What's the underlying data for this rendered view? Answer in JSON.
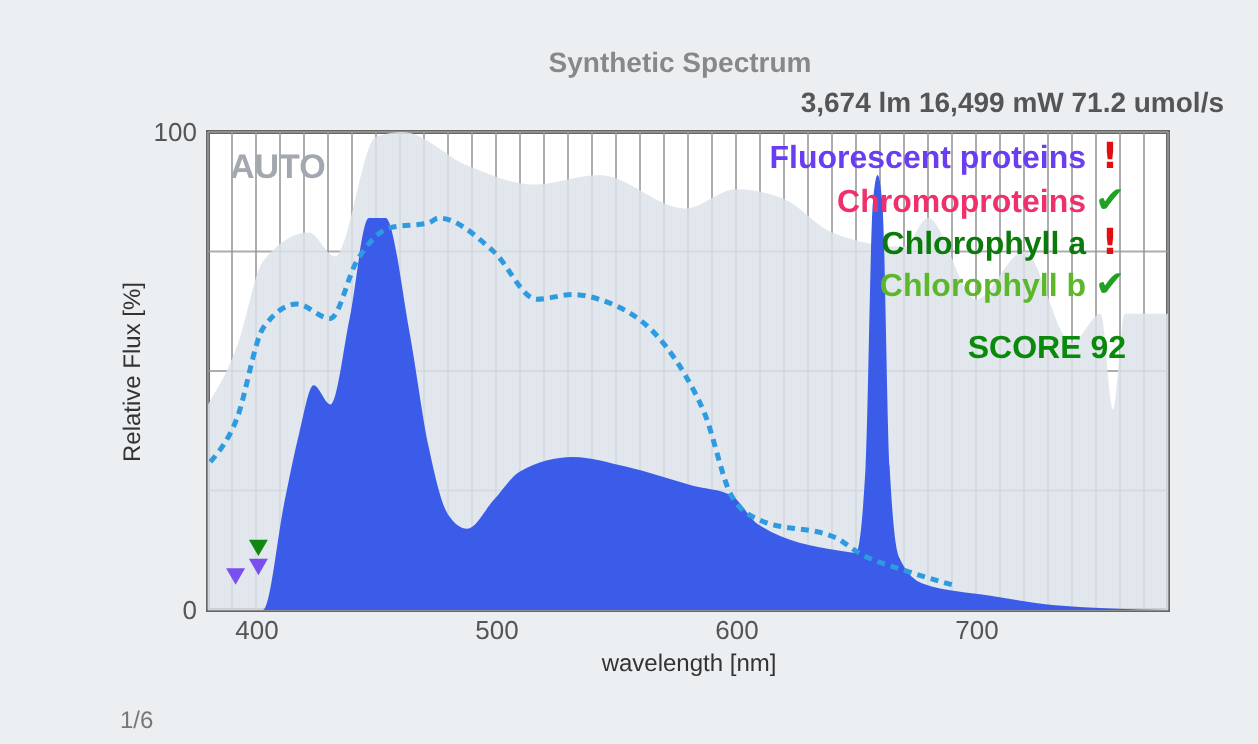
{
  "chart_data": {
    "type": "area",
    "title": "Synthetic Spectrum",
    "subtitle": "3,674 lm   16,499 mW   71.2 umol/s",
    "xlabel": "wavelength [nm]",
    "ylabel": "Relative Flux [%]",
    "xlim": [
      380,
      780
    ],
    "ylim": [
      0,
      100
    ],
    "xticks": [
      {
        "value": 380,
        "label": null
      },
      {
        "value": 390,
        "label": null
      },
      400,
      {
        "value": 410,
        "label": null
      },
      {
        "value": 420,
        "label": null
      },
      {
        "value": 430,
        "label": null
      },
      {
        "value": 440,
        "label": null
      },
      {
        "value": 450,
        "label": null
      },
      {
        "value": 460,
        "label": null
      },
      {
        "value": 470,
        "label": null
      },
      {
        "value": 480,
        "label": null
      },
      {
        "value": 490,
        "label": null
      },
      500,
      {
        "value": 510,
        "label": null
      },
      {
        "value": 520,
        "label": null
      },
      {
        "value": 530,
        "label": null
      },
      {
        "value": 540,
        "label": null
      },
      {
        "value": 550,
        "label": null
      },
      {
        "value": 560,
        "label": null
      },
      {
        "value": 570,
        "label": null
      },
      {
        "value": 580,
        "label": null
      },
      {
        "value": 590,
        "label": null
      },
      600,
      {
        "value": 610,
        "label": null
      },
      {
        "value": 620,
        "label": null
      },
      {
        "value": 630,
        "label": null
      },
      {
        "value": 640,
        "label": null
      },
      {
        "value": 650,
        "label": null
      },
      {
        "value": 660,
        "label": null
      },
      {
        "value": 670,
        "label": null
      },
      {
        "value": 680,
        "label": null
      },
      {
        "value": 690,
        "label": null
      },
      700,
      {
        "value": 710,
        "label": null
      },
      {
        "value": 720,
        "label": null
      },
      {
        "value": 730,
        "label": null
      },
      {
        "value": 740,
        "label": null
      },
      {
        "value": 750,
        "label": null
      },
      {
        "value": 760,
        "label": null
      },
      {
        "value": 770,
        "label": null
      },
      {
        "value": 780,
        "label": null
      }
    ],
    "yticks": [
      0,
      {
        "value": 25,
        "label": null
      },
      {
        "value": 50,
        "label": null
      },
      {
        "value": 75,
        "label": null
      },
      100
    ],
    "grid": true,
    "legend": false,
    "series": [
      {
        "type": "area",
        "color": "#dde2ea",
        "x": [
          380,
          392,
          403,
          422,
          433,
          450,
          461,
          488,
          516,
          543,
          579,
          600,
          620,
          640,
          670,
          680,
          700,
          720,
          740,
          752,
          757,
          762,
          780
        ],
        "values": [
          43,
          55,
          73,
          79,
          74,
          99,
          100,
          93,
          89,
          91,
          84,
          88,
          86,
          79,
          76,
          82,
          65,
          75,
          56,
          62,
          42,
          62,
          62
        ]
      },
      {
        "type": "area",
        "color": "#3a5ce8",
        "x": [
          380,
          403,
          412,
          418,
          424,
          431,
          439,
          447,
          454,
          464,
          472,
          480,
          488,
          499,
          510,
          532,
          554,
          582,
          598,
          609,
          642,
          650,
          654,
          657,
          659,
          661,
          664,
          668,
          678,
          706,
          733,
          780
        ],
        "values": [
          0,
          0,
          23,
          37,
          47,
          43,
          61,
          82,
          82,
          58,
          34,
          20,
          17,
          23,
          29,
          32,
          30,
          26,
          24,
          18,
          12.5,
          12,
          30,
          85,
          91,
          85,
          30,
          11,
          5.5,
          3,
          1,
          0
        ]
      },
      {
        "type": "line",
        "line_style": "dashed",
        "color": "#2e9be0",
        "x": [
          381,
          392,
          403,
          417,
          431,
          442,
          456,
          472,
          476,
          499,
          517,
          532,
          543,
          571,
          579,
          587,
          598,
          609,
          642,
          651,
          672,
          692
        ],
        "values": [
          31,
          40,
          59,
          64,
          61,
          73,
          80,
          81,
          82,
          75,
          65,
          66,
          65,
          55,
          49,
          41,
          24,
          19,
          15,
          12,
          8,
          5
        ]
      },
      {
        "type": "scatter",
        "marker": "triangle",
        "x": [
          391.5,
          401,
          401
        ],
        "values": [
          7,
          9,
          13
        ],
        "colors": [
          "#7a4ff0",
          "#7a4ff0",
          "#118811"
        ]
      }
    ],
    "annotations": [
      "AUTO",
      "Fluorescent proteins !",
      "Chromoproteins ✔",
      "Chlorophyll a !",
      "Chlorophyll b ✔",
      "SCORE 92",
      "1/6"
    ]
  }
}
